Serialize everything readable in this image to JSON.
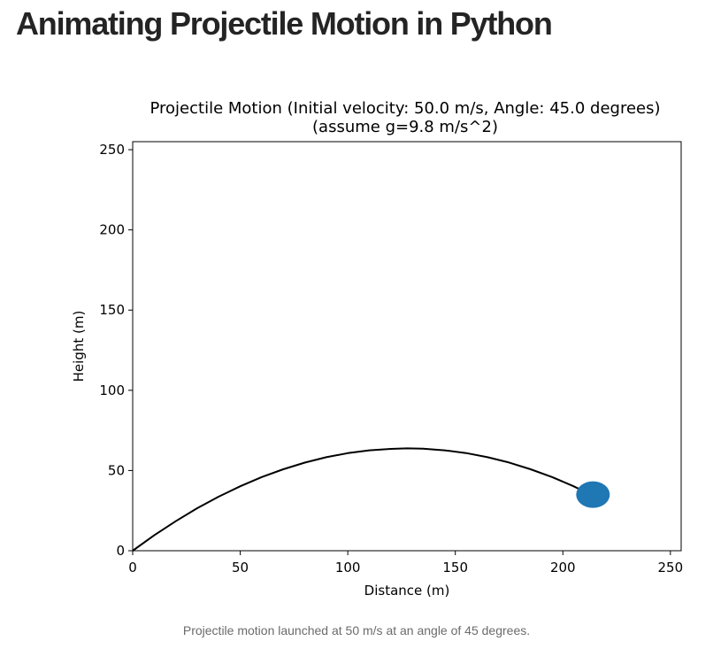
{
  "article": {
    "title": "Animating Projectile Motion in Python",
    "caption": "Projectile motion launched at 50 m/s at an angle of 45 degrees."
  },
  "chart_data": {
    "type": "line",
    "title": "Projectile Motion (Initial velocity: 50.0 m/s, Angle: 45.0 degrees)",
    "subtitle": "(assume g=9.8 m/s^2)",
    "xlabel": "Distance (m)",
    "ylabel": "Height (m)",
    "xlim": [
      0,
      255
    ],
    "ylim": [
      0,
      255
    ],
    "xticks": [
      0,
      50,
      100,
      150,
      200,
      250
    ],
    "yticks": [
      0,
      50,
      100,
      150,
      200,
      250
    ],
    "grid": false,
    "series": [
      {
        "color": "#000000",
        "x": [
          0,
          10,
          20,
          30,
          40,
          50,
          60,
          70,
          80,
          90,
          100,
          110,
          120,
          127.55,
          135,
          145,
          155,
          165,
          175,
          185,
          195,
          205,
          212
        ],
        "y": [
          0,
          9.6,
          18.4,
          26.5,
          33.7,
          40.2,
          45.9,
          50.8,
          54.9,
          58.3,
          60.8,
          62.6,
          63.5,
          63.8,
          63.6,
          62.6,
          60.9,
          58.3,
          55.0,
          50.8,
          45.9,
          40.2,
          35.6
        ]
      }
    ],
    "marker": {
      "x": 214,
      "y": 35.0,
      "color": "#1f77b4"
    }
  }
}
